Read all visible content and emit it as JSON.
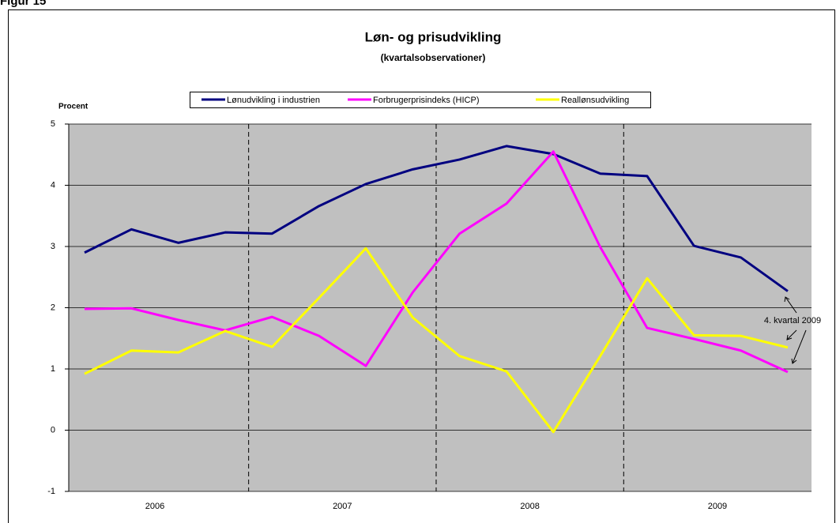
{
  "figure_label": "Figur 15",
  "chart_data": {
    "type": "line",
    "title": "Løn- og prisudvikling",
    "subtitle": "(kvartalsobservationer)",
    "y_label": "Procent",
    "categories": [
      null,
      null,
      null,
      null,
      null,
      null,
      null,
      null,
      null,
      null,
      null,
      null,
      null,
      null,
      null,
      null
    ],
    "groups": [
      "2006",
      "2007",
      "2008",
      "2009"
    ],
    "series": [
      {
        "name": "Lønudvikling i industrien",
        "color": "#000080",
        "values": [
          2.9,
          3.28,
          3.06,
          3.23,
          3.21,
          3.66,
          4.02,
          4.26,
          4.42,
          4.64,
          4.51,
          4.19,
          4.15,
          3.01,
          2.82,
          2.27
        ]
      },
      {
        "name": "Forbrugerprisindeks (HICP)",
        "color": "#ff00ff",
        "values": [
          1.98,
          1.99,
          1.8,
          1.63,
          1.85,
          1.54,
          1.05,
          2.25,
          3.21,
          3.7,
          4.55,
          2.99,
          1.67,
          1.49,
          1.3,
          0.95
        ]
      },
      {
        "name": "Reallønsudvikling",
        "color": "#ffff00",
        "values": [
          0.92,
          1.3,
          1.27,
          1.62,
          1.36,
          2.16,
          2.97,
          1.84,
          1.21,
          0.96,
          -0.03,
          1.21,
          2.48,
          1.55,
          1.54,
          1.35
        ]
      }
    ],
    "ylim": [
      -1,
      5
    ],
    "yticks": [
      -1,
      0,
      1,
      2,
      3,
      4,
      5
    ],
    "grid": true,
    "annotation": "4. kvartal 2009"
  }
}
